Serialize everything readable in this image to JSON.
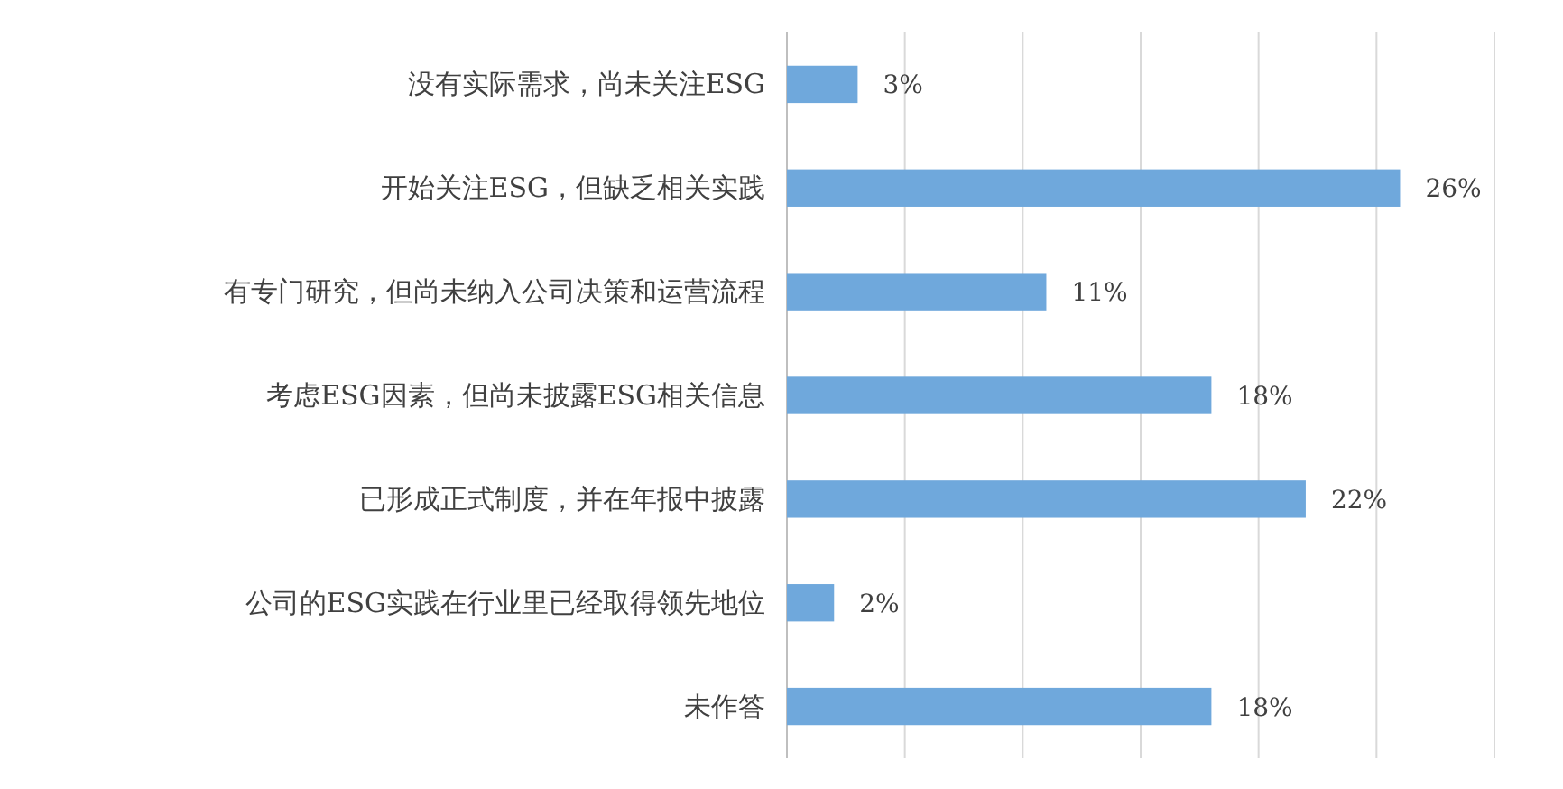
{
  "chart_data": {
    "type": "bar",
    "orientation": "horizontal",
    "categories": [
      "没有实际需求，尚未关注ESG",
      "开始关注ESG，但缺乏相关实践",
      "有专门研究，但尚未纳入公司决策和运营流程",
      "考虑ESG因素，但尚未披露ESG相关信息",
      "已形成正式制度，并在年报中披露",
      "公司的ESG实践在行业里已经取得领先地位",
      "未作答"
    ],
    "values": [
      3,
      26,
      11,
      18,
      22,
      2,
      18
    ],
    "value_labels": [
      "3%",
      "26%",
      "11%",
      "18%",
      "22%",
      "2%",
      "18%"
    ],
    "color": "#6fa8dc",
    "xlim": [
      0,
      30
    ],
    "xticks": [
      {
        "value": 0,
        "label": null
      },
      {
        "value": 5,
        "label": null
      },
      {
        "value": 10,
        "label": null
      },
      {
        "value": 15,
        "label": null
      },
      {
        "value": 20,
        "label": null
      },
      {
        "value": 25,
        "label": null
      },
      {
        "value": 30,
        "label": null
      }
    ],
    "grid": "x"
  }
}
